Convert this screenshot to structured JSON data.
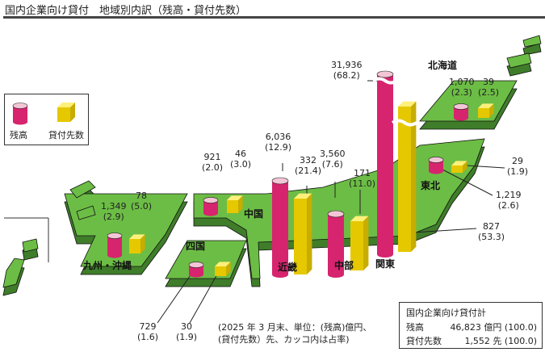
{
  "title": "国内企業向け貸付　地域別内訳（残高・貸付先数）",
  "legend": {
    "balance": "残高",
    "count": "貸付先数"
  },
  "colors": {
    "land": "#6cbd45",
    "land_side": "#3f7d2a",
    "balance_bar": "#d6246e",
    "count_bar": "#f2d800"
  },
  "regions": {
    "hokkaido": {
      "name": "北海道",
      "balance": "1,070",
      "balance_pct": "(2.3)",
      "count": "39",
      "count_pct": "(2.5)"
    },
    "tohoku": {
      "name": "東北",
      "balance": "1,219",
      "balance_pct": "(2.6)",
      "count": "29",
      "count_pct": "(1.9)"
    },
    "kanto": {
      "name": "関東",
      "balance": "31,936",
      "balance_pct": "(68.2)",
      "count": "827",
      "count_pct": "(53.3)"
    },
    "chubu": {
      "name": "中部",
      "balance": "3,560",
      "balance_pct": "(7.6)",
      "count": "171",
      "count_pct": "(11.0)"
    },
    "kinki": {
      "name": "近畿",
      "balance": "6,036",
      "balance_pct": "(12.9)",
      "count": "332",
      "count_pct": "(21.4)"
    },
    "chugoku": {
      "name": "中国",
      "balance": "921",
      "balance_pct": "(2.0)",
      "count": "46",
      "count_pct": "(3.0)"
    },
    "shikoku": {
      "name": "四国",
      "balance": "729",
      "balance_pct": "(1.6)",
      "count": "30",
      "count_pct": "(1.9)"
    },
    "kyushu": {
      "name": "九州・沖縄",
      "balance": "1,349",
      "balance_pct": "(2.9)",
      "count": "78",
      "count_pct": "(5.0)"
    }
  },
  "total": {
    "title": "国内企業向け貸付計",
    "balance_label": "残高",
    "balance_value": "46,823 億円 (100.0)",
    "count_label": "貸付先数",
    "count_value": "1,552 先 (100.0)"
  },
  "note": {
    "line1": "(2025 年 3 月末、単位：(残高)億円、",
    "line2": "(貸付先数）先、カッコ内は占率)"
  }
}
